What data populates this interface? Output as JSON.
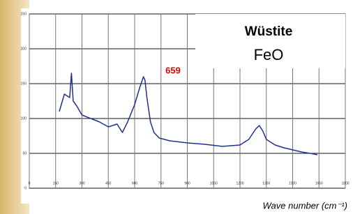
{
  "chart_data": {
    "type": "line",
    "title": "Wüstite",
    "subtitle": "FeO",
    "annotation": "659",
    "annotation_color": "#e00000",
    "x_label": "Wave number (cm⁻¹)",
    "x": [
      171,
      200,
      230,
      240,
      250,
      270,
      300,
      350,
      400,
      450,
      500,
      530,
      560,
      600,
      630,
      650,
      659,
      670,
      690,
      710,
      740,
      800,
      900,
      1000,
      1100,
      1200,
      1250,
      1290,
      1310,
      1330,
      1350,
      1400,
      1450,
      1500,
      1550,
      1600,
      1641
    ],
    "values": [
      110,
      135,
      130,
      165,
      125,
      118,
      105,
      100,
      95,
      88,
      92,
      80,
      95,
      120,
      145,
      160,
      155,
      130,
      95,
      80,
      72,
      68,
      65,
      63,
      60,
      62,
      70,
      85,
      90,
      82,
      70,
      62,
      58,
      55,
      52,
      50,
      48
    ],
    "color": "#1f2f8f",
    "xlim": [
      0,
      1800
    ],
    "xticks": [
      0,
      150,
      300,
      450,
      600,
      750,
      900,
      1050,
      1200,
      1350,
      1500,
      1650,
      1800
    ],
    "ylim": [
      0,
      250
    ],
    "yticks": [
      0,
      50,
      100,
      150,
      200,
      250
    ],
    "grid": true
  }
}
